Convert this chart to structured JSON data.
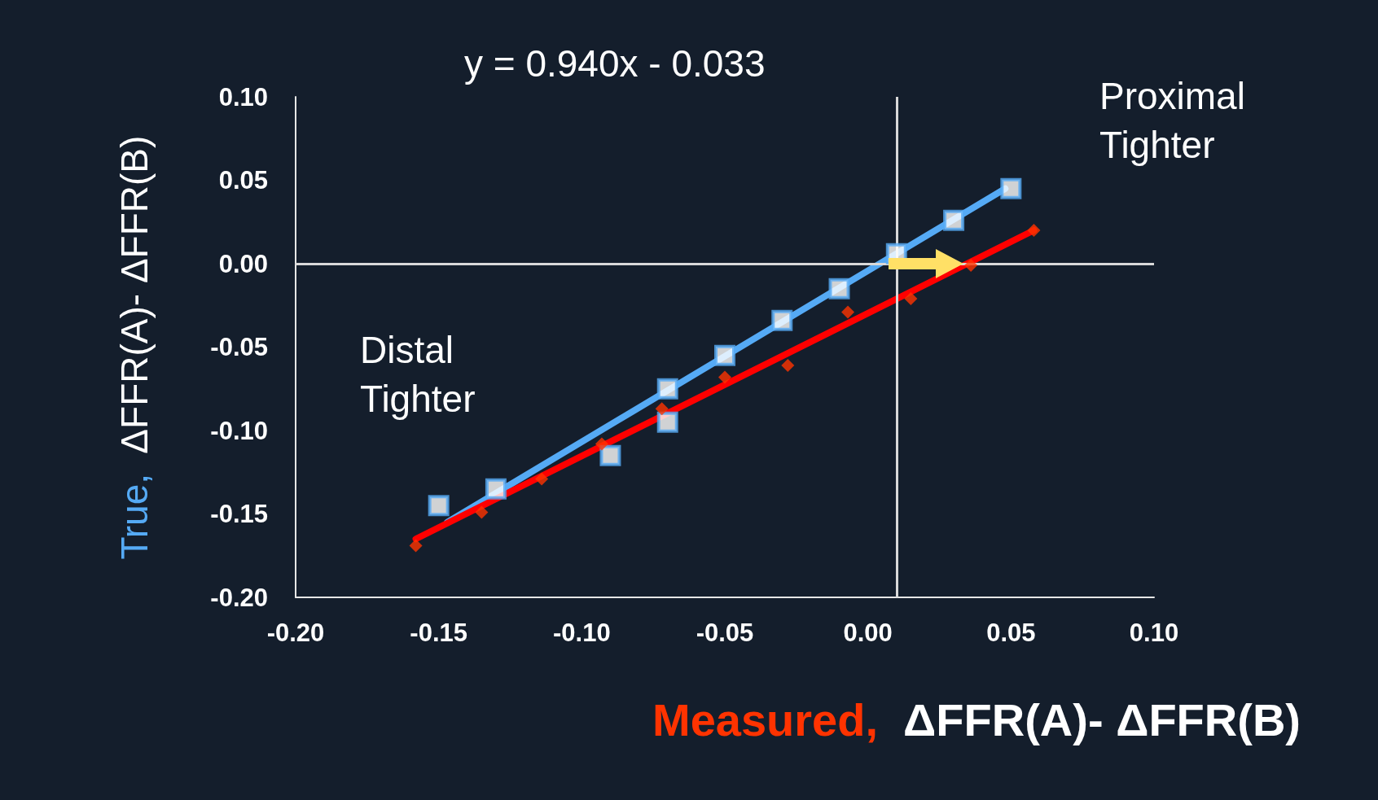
{
  "chart_data": {
    "type": "scatter",
    "xlabel": "Measured,  ΔFFR(A)- ΔFFR(B)",
    "ylabel": "True,  ΔFFR(A)- ΔFFR(B)",
    "annotations": [
      "y = 0.940x - 0.033",
      "Distal\nTighter",
      "Proximal\nTighter"
    ],
    "series": [
      {
        "marker": "square",
        "color": "#55aaf5",
        "x": [
          -0.15,
          -0.13,
          -0.09,
          -0.07,
          -0.07,
          -0.05,
          -0.03,
          -0.01,
          0.01,
          0.03,
          0.05
        ],
        "values": [
          -0.145,
          -0.135,
          -0.115,
          -0.095,
          -0.075,
          -0.055,
          -0.034,
          -0.015,
          0.006,
          0.026,
          0.045
        ]
      },
      {
        "type": "line",
        "marker": "none",
        "color": "#55aaf5",
        "x": [
          -0.147,
          0.048
        ],
        "values": [
          -0.155,
          0.045
        ]
      },
      {
        "marker": "diamond",
        "color": "#ff3300",
        "x": [
          -0.158,
          -0.135,
          -0.114,
          -0.093,
          -0.072,
          -0.05,
          -0.028,
          -0.007,
          0.015,
          0.036,
          0.058
        ],
        "values": [
          -0.169,
          -0.149,
          -0.129,
          -0.108,
          -0.087,
          -0.068,
          -0.061,
          -0.029,
          -0.021,
          -0.001,
          0.02
        ]
      },
      {
        "type": "line",
        "marker": "none",
        "color": "#ff0000",
        "x": [
          -0.158,
          0.058
        ],
        "values": [
          -0.165,
          0.02
        ]
      }
    ],
    "xlim": [
      -0.2,
      0.1
    ],
    "xticks": [
      {
        "value": -0.2,
        "label": "-0.20"
      },
      {
        "value": -0.15,
        "label": "-0.15"
      },
      {
        "value": -0.1,
        "label": "-0.10"
      },
      {
        "value": -0.05,
        "label": "-0.05"
      },
      {
        "value": 0,
        "label": "0.00"
      },
      {
        "value": 0.05,
        "label": "0.05"
      },
      {
        "value": 0.1,
        "label": "0.10"
      }
    ],
    "ylim": [
      -0.2,
      0.1
    ],
    "yticks": [
      {
        "value": -0.2,
        "label": "-0.20"
      },
      {
        "value": -0.15,
        "label": "-0.15"
      },
      {
        "value": -0.1,
        "label": "-0.10"
      },
      {
        "value": -0.05,
        "label": "-0.05"
      },
      {
        "value": 0,
        "label": "0.00"
      },
      {
        "value": 0.05,
        "label": "0.05"
      },
      {
        "value": 0.1,
        "label": "0.10"
      }
    ],
    "ref_lines": [
      {
        "axis": "x",
        "value": 0.01,
        "color": "#d9d9d9"
      },
      {
        "axis": "y",
        "value": 0,
        "color": "#d9d9d9"
      }
    ],
    "grid": false
  }
}
